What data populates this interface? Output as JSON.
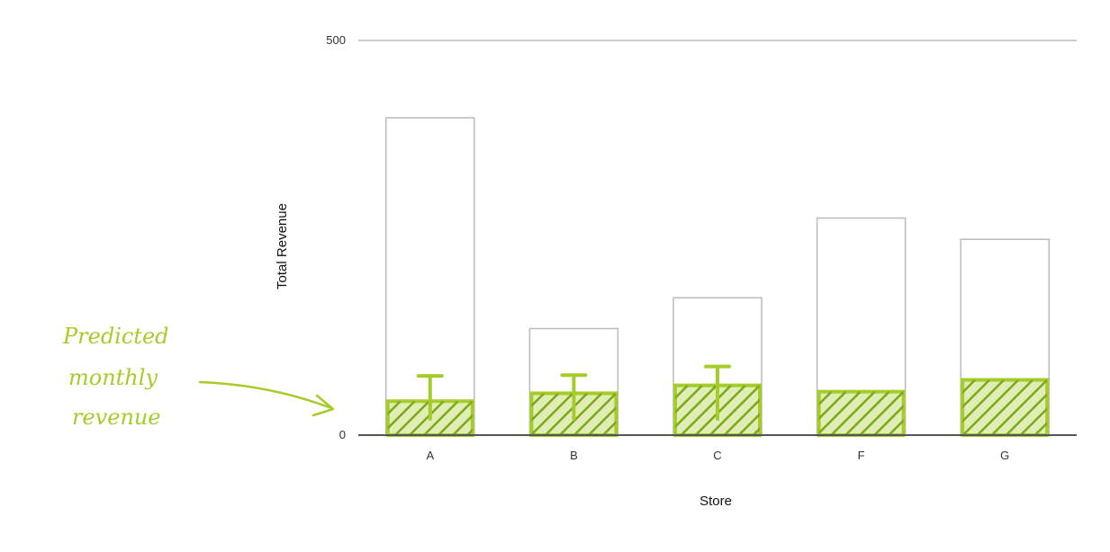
{
  "chart_data": {
    "type": "bar",
    "title": "",
    "xlabel": "Store",
    "ylabel": "Total Revenue",
    "categories": [
      "A",
      "B",
      "C",
      "F",
      "G"
    ],
    "series": [
      {
        "values": [
          402,
          135,
          174,
          275,
          248
        ]
      },
      {
        "values": [
          43,
          53,
          63,
          55,
          70
        ],
        "error_high": [
          75,
          76,
          87,
          null,
          null
        ]
      }
    ],
    "yticks": [
      0,
      500
    ],
    "ylim": [
      0,
      500
    ],
    "grid": false,
    "annotation": {
      "lines": [
        "Predicted",
        "monthly",
        "revenue"
      ]
    },
    "colors": {
      "outline": "#bbbbbb",
      "predicted": "#a6cc2a",
      "hatch": "#7ea81c",
      "axis": "#555555",
      "gridline": "#cccccc"
    }
  }
}
